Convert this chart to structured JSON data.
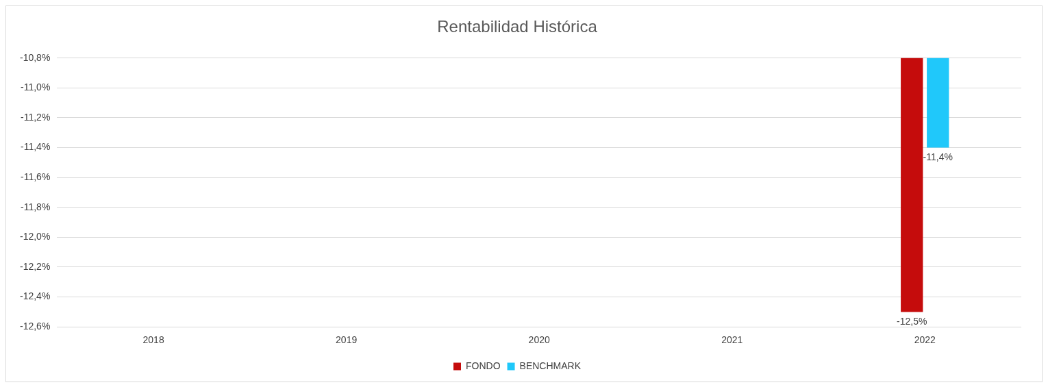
{
  "chart_data": {
    "type": "bar",
    "title": "Rentabilidad Histórica",
    "categories": [
      "2018",
      "2019",
      "2020",
      "2021",
      "2022"
    ],
    "series": [
      {
        "name": "FONDO",
        "color": "#c50c0c",
        "values": [
          null,
          null,
          null,
          null,
          -12.5
        ],
        "value_labels": [
          null,
          null,
          null,
          null,
          "-12,5%"
        ]
      },
      {
        "name": "BENCHMARK",
        "color": "#20c8fa",
        "values": [
          null,
          null,
          null,
          null,
          -11.4
        ],
        "value_labels": [
          null,
          null,
          null,
          null,
          "-11,4%"
        ]
      }
    ],
    "ylim": [
      -12.6,
      -10.8
    ],
    "yticks": [
      {
        "value": -12.6,
        "label": "-12,6%"
      },
      {
        "value": -12.4,
        "label": "-12,4%"
      },
      {
        "value": -12.2,
        "label": "-12,2%"
      },
      {
        "value": -12.0,
        "label": "-12,0%"
      },
      {
        "value": -11.8,
        "label": "-11,8%"
      },
      {
        "value": -11.6,
        "label": "-11,6%"
      },
      {
        "value": -11.4,
        "label": "-11,4%"
      },
      {
        "value": -11.2,
        "label": "-11,2%"
      },
      {
        "value": -11.0,
        "label": "-11,0%"
      },
      {
        "value": -10.8,
        "label": "-10,8%"
      }
    ],
    "grid": "y",
    "legend": "bottom"
  }
}
